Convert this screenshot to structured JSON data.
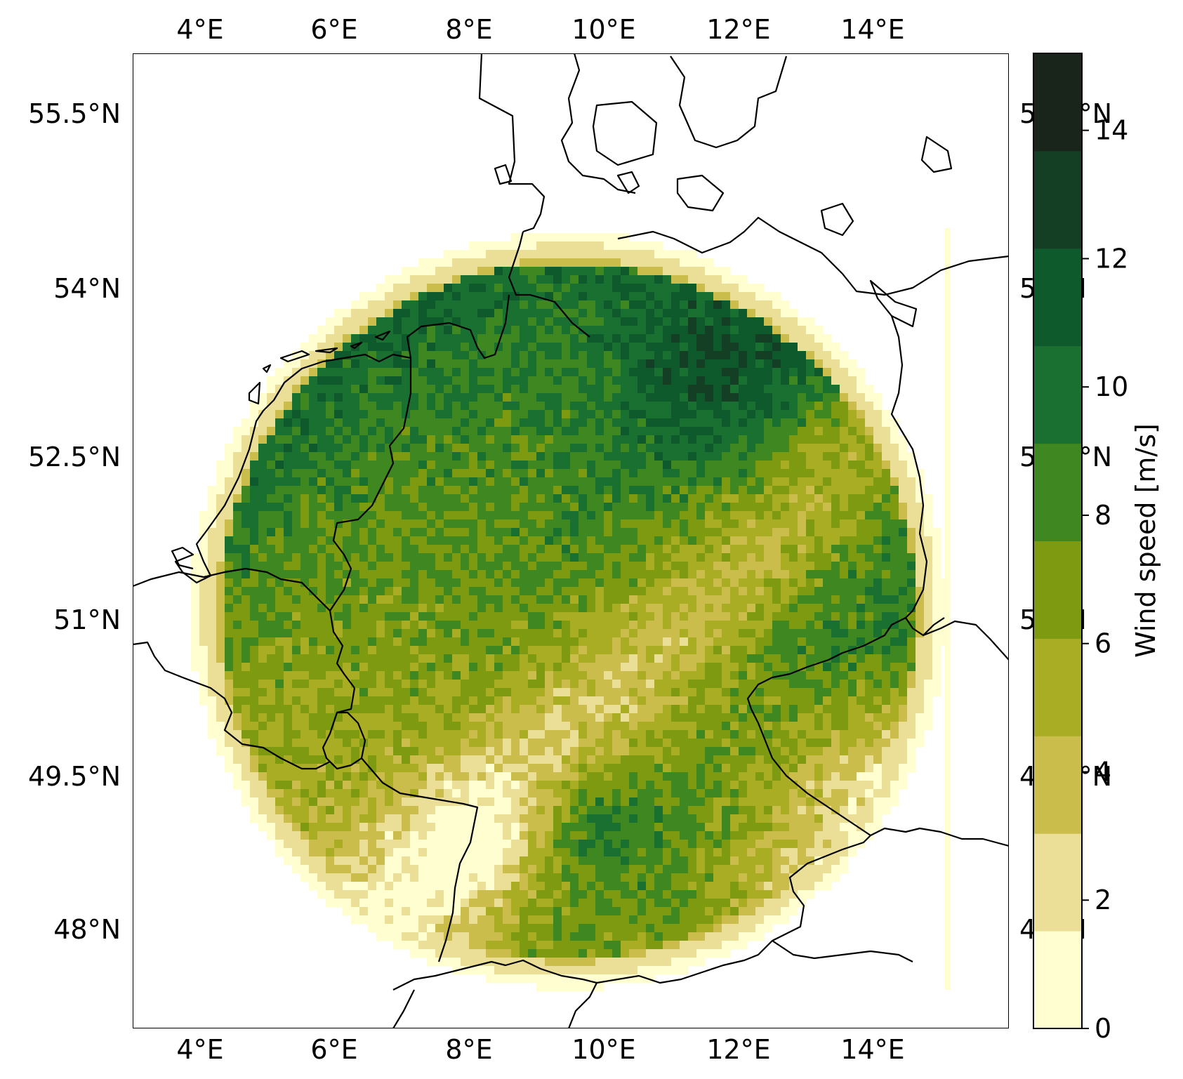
{
  "map": {
    "lon_ticks": [
      "4°E",
      "6°E",
      "8°E",
      "10°E",
      "12°E",
      "14°E"
    ],
    "lat_ticks": [
      "55.5°N",
      "54°N",
      "52.5°N",
      "51°N",
      "49.5°N",
      "48°N"
    ],
    "lon_range": [
      3,
      16
    ],
    "lat_range": [
      47,
      56.2
    ],
    "lon_values": [
      4,
      6,
      8,
      10,
      12,
      14
    ],
    "lat_values": [
      55.5,
      54,
      52.5,
      51,
      49.5,
      48
    ],
    "coastlines": "black",
    "field": "wind speed, circular radar-style domain centered near 9.5°E 51°N"
  },
  "colorbar": {
    "label": "Wind speed [m/s]",
    "ticks": [
      "0",
      "2",
      "4",
      "6",
      "8",
      "10",
      "12",
      "14"
    ],
    "tick_values": [
      0,
      2,
      4,
      6,
      8,
      10,
      12,
      14
    ],
    "range": [
      0,
      15.2
    ],
    "levels": [
      0,
      1.52,
      3.04,
      4.56,
      6.08,
      7.6,
      9.12,
      10.64,
      12.16,
      13.68,
      15.2
    ],
    "colors": [
      "#fefed0",
      "#ebdf98",
      "#cbbd4c",
      "#a9ad24",
      "#7d9a10",
      "#3f8720",
      "#1a7030",
      "#0f5a2c",
      "#143f25",
      "#19251a"
    ]
  }
}
